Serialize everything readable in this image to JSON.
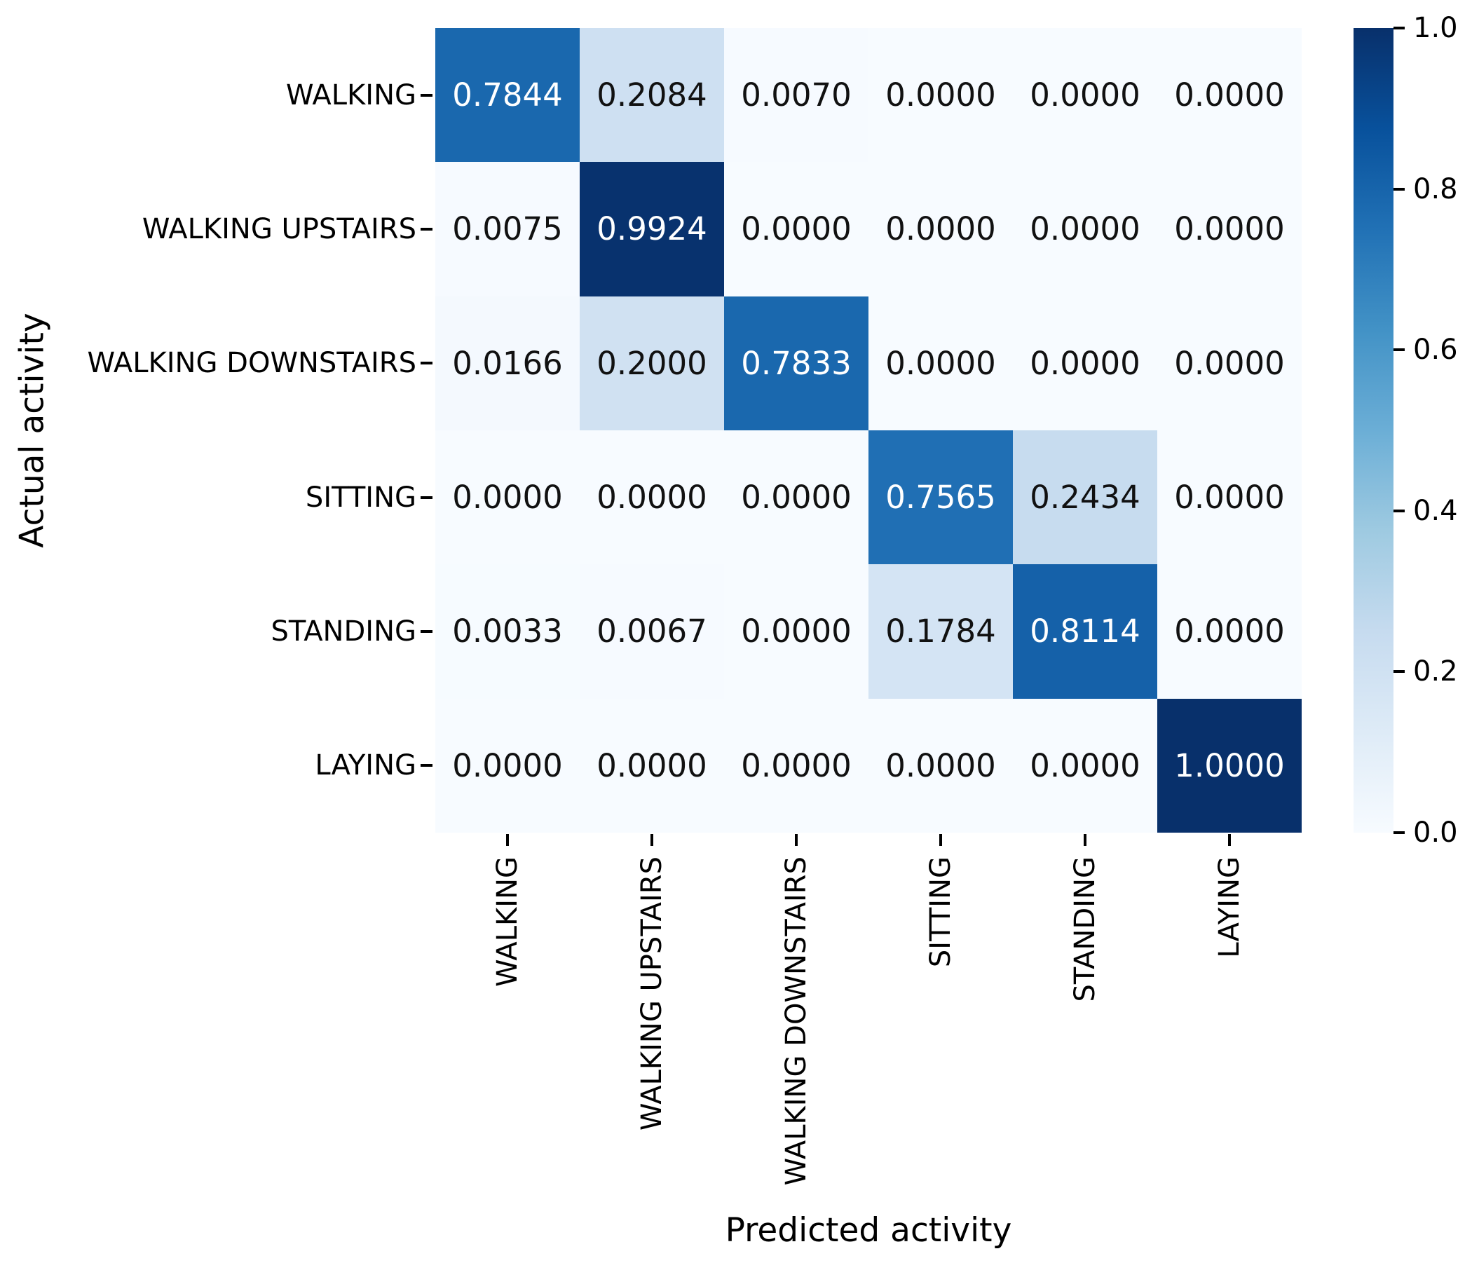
{
  "chart_data": {
    "type": "heatmap",
    "title": "",
    "xlabel": "Predicted activity",
    "ylabel": "Actual activity",
    "x_categories": [
      "WALKING",
      "WALKING UPSTAIRS",
      "WALKING DOWNSTAIRS",
      "SITTING",
      "STANDING",
      "LAYING"
    ],
    "y_categories": [
      "WALKING",
      "WALKING UPSTAIRS",
      "WALKING DOWNSTAIRS",
      "SITTING",
      "STANDING",
      "LAYING"
    ],
    "matrix": [
      [
        0.7844,
        0.2084,
        0.007,
        0.0,
        0.0,
        0.0
      ],
      [
        0.0075,
        0.9924,
        0.0,
        0.0,
        0.0,
        0.0
      ],
      [
        0.0166,
        0.2,
        0.7833,
        0.0,
        0.0,
        0.0
      ],
      [
        0.0,
        0.0,
        0.0,
        0.7565,
        0.2434,
        0.0
      ],
      [
        0.0033,
        0.0067,
        0.0,
        0.1784,
        0.8114,
        0.0
      ],
      [
        0.0,
        0.0,
        0.0,
        0.0,
        0.0,
        1.0
      ]
    ],
    "matrix_text": [
      [
        "0.7844",
        "0.2084",
        "0.0070",
        "0.0000",
        "0.0000",
        "0.0000"
      ],
      [
        "0.0075",
        "0.9924",
        "0.0000",
        "0.0000",
        "0.0000",
        "0.0000"
      ],
      [
        "0.0166",
        "0.2000",
        "0.7833",
        "0.0000",
        "0.0000",
        "0.0000"
      ],
      [
        "0.0000",
        "0.0000",
        "0.0000",
        "0.7565",
        "0.2434",
        "0.0000"
      ],
      [
        "0.0033",
        "0.0067",
        "0.0000",
        "0.1784",
        "0.8114",
        "0.0000"
      ],
      [
        "0.0000",
        "0.0000",
        "0.0000",
        "0.0000",
        "0.0000",
        "1.0000"
      ]
    ],
    "vmin": 0.0,
    "vmax": 1.0,
    "value_decimals": 4,
    "grid": false,
    "legend_position": "right-colorbar",
    "colormap": "Blues",
    "colormap_stops": [
      {
        "pos": 0.0,
        "hex": "#f7fbff"
      },
      {
        "pos": 0.125,
        "hex": "#deebf7"
      },
      {
        "pos": 0.25,
        "hex": "#c6dbef"
      },
      {
        "pos": 0.375,
        "hex": "#9ecae1"
      },
      {
        "pos": 0.5,
        "hex": "#6baed6"
      },
      {
        "pos": 0.625,
        "hex": "#4292c6"
      },
      {
        "pos": 0.75,
        "hex": "#2171b5"
      },
      {
        "pos": 0.875,
        "hex": "#08519c"
      },
      {
        "pos": 1.0,
        "hex": "#08306b"
      }
    ],
    "colorbar": {
      "tick_labels": [
        "1.0",
        "0.8",
        "0.6",
        "0.4",
        "0.2",
        "0.0"
      ],
      "tick_values": [
        1.0,
        0.8,
        0.6,
        0.4,
        0.2,
        0.0
      ]
    },
    "annotation_colors": {
      "dark": "#111111",
      "light": "#ffffff"
    },
    "tick_color": "#000000",
    "background": "#ffffff"
  }
}
